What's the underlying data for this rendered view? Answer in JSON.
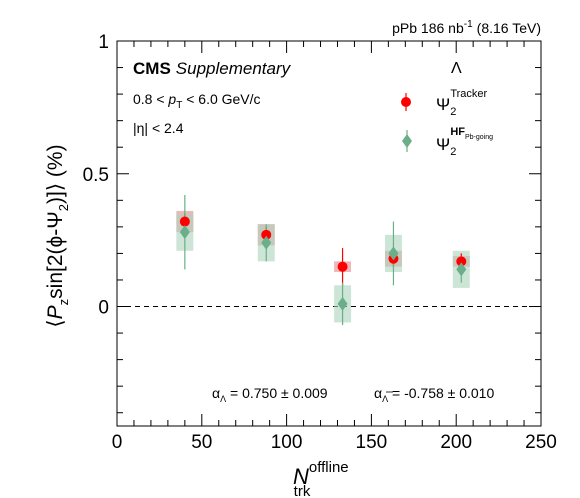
{
  "header": {
    "lumi_label": "pPb 186 nb",
    "lumi_sup": "-1",
    "energy": "(8.16 TeV)"
  },
  "cms": {
    "brand": "CMS",
    "tag": "Supplementary"
  },
  "cuts": {
    "pt_left": "0.8 < ",
    "pt_var": "p",
    "pt_sub": "T",
    "pt_right": " < 6.0 GeV/c",
    "eta": "|η| < 2.4"
  },
  "legend": {
    "title": "Λ",
    "items": [
      {
        "psi": "Ψ",
        "sub": "2",
        "sup": "Tracker",
        "sup2": "",
        "color": "#ff0000",
        "marker": "circle"
      },
      {
        "psi": "Ψ",
        "sub": "2",
        "sup": "HF",
        "sup2": "Pb-going",
        "color": "#6aaf8a",
        "marker": "diamond"
      }
    ]
  },
  "alphas": {
    "lambda": "α",
    "lambda_sub": "Λ",
    "lambda_val": " = 0.750 ± 0.009",
    "antilambda": "α",
    "antilambda_sub": "Λ",
    "antilambda_val": " = -0.758 ± 0.010"
  },
  "axis_labels": {
    "y_open": "⟨",
    "y_P": "P",
    "y_P_sub": "z",
    "y_mid": "sin[2(ϕ-Ψ",
    "y_psi_sub": "2",
    "y_close": ")]⟩ (%)",
    "x_N": "N",
    "x_sup": "offline",
    "x_sub": "trk"
  },
  "chart_data": {
    "type": "scatter",
    "xlim": [
      0,
      250
    ],
    "ylim": [
      -0.45,
      1.0
    ],
    "x_ticks": [
      0,
      50,
      100,
      150,
      200,
      250
    ],
    "y_ticks": [
      {
        "v": 0,
        "label": "0"
      },
      {
        "v": 0.5,
        "label": "0.5"
      },
      {
        "v": 1,
        "label": "1"
      }
    ],
    "reference_line": 0,
    "series": [
      {
        "name": "Ψ2 Tracker",
        "color": "#ff0000",
        "box_color": "#e8a0a0",
        "marker": "circle",
        "points": [
          {
            "x": 40,
            "y": 0.32,
            "stat": 0.03,
            "sys": 0.04,
            "xerr": 5
          },
          {
            "x": 88,
            "y": 0.27,
            "stat": 0.03,
            "sys": 0.04,
            "xerr": 5
          },
          {
            "x": 133,
            "y": 0.15,
            "stat": 0.07,
            "sys": 0.02,
            "xerr": 5
          },
          {
            "x": 163,
            "y": 0.18,
            "stat": 0.03,
            "sys": 0.03,
            "xerr": 5
          },
          {
            "x": 203,
            "y": 0.17,
            "stat": 0.03,
            "sys": 0.02,
            "xerr": 5
          }
        ]
      },
      {
        "name": "Ψ2 HF Pb-going",
        "color": "#6aaf8a",
        "box_color": "#aad4bc",
        "marker": "diamond",
        "points": [
          {
            "x": 40,
            "y": 0.28,
            "stat": 0.14,
            "sys": 0.07,
            "xerr": 5
          },
          {
            "x": 88,
            "y": 0.24,
            "stat": 0.07,
            "sys": 0.07,
            "xerr": 5
          },
          {
            "x": 133,
            "y": 0.01,
            "stat": 0.08,
            "sys": 0.07,
            "xerr": 5
          },
          {
            "x": 163,
            "y": 0.2,
            "stat": 0.12,
            "sys": 0.07,
            "xerr": 5
          },
          {
            "x": 203,
            "y": 0.14,
            "stat": 0.05,
            "sys": 0.07,
            "xerr": 5
          }
        ]
      }
    ]
  }
}
